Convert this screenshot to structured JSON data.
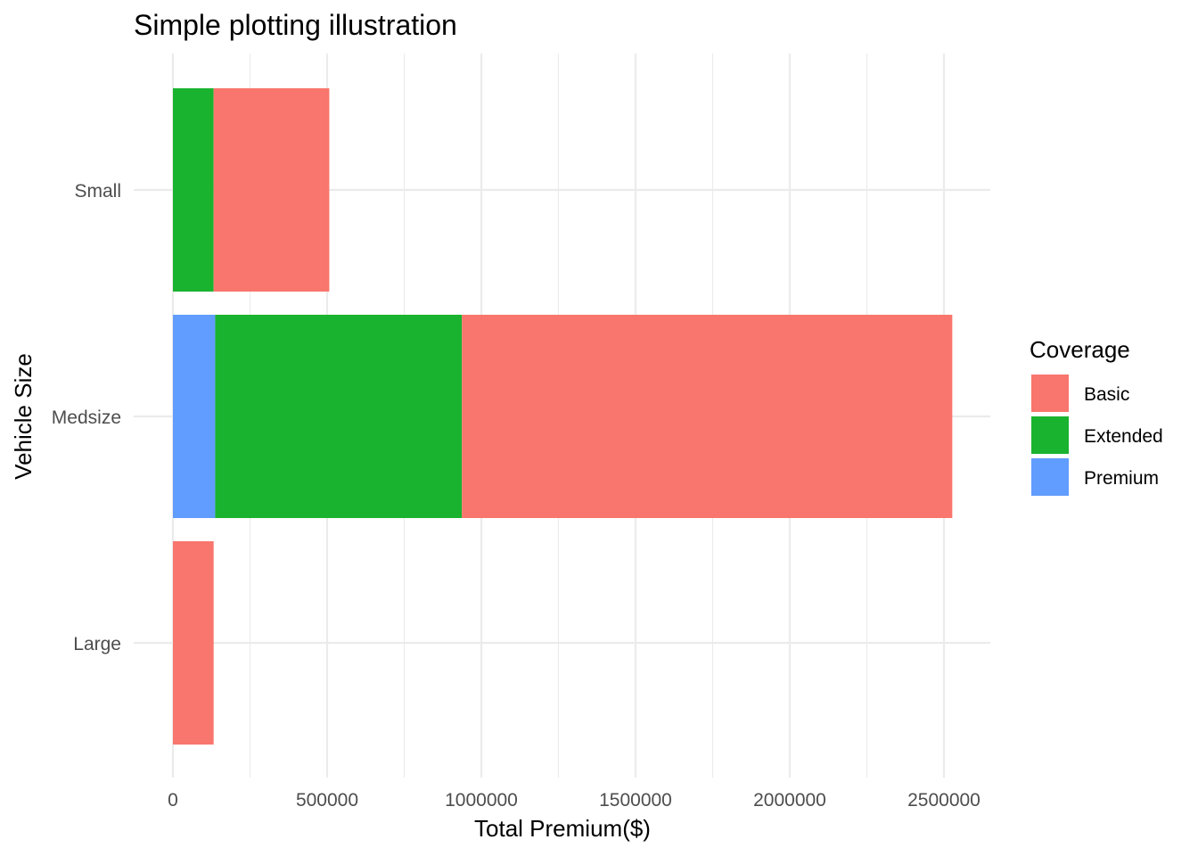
{
  "chart_data": {
    "type": "bar",
    "orientation": "horizontal",
    "stacked": true,
    "title": "Simple plotting illustration",
    "xlabel": "Total Premium($)",
    "ylabel": "Vehicle Size",
    "categories": [
      "Small",
      "Medsize",
      "Large"
    ],
    "series": [
      {
        "name": "Premium",
        "color": "#619CFF",
        "values": [
          0,
          137000,
          0
        ]
      },
      {
        "name": "Extended",
        "color": "#1AB32F",
        "values": [
          132000,
          800000,
          0
        ]
      },
      {
        "name": "Basic",
        "color": "#F8766D",
        "values": [
          375000,
          1590000,
          132000
        ]
      }
    ],
    "xlim": [
      0,
      2650000
    ],
    "xticks": [
      0,
      500000,
      1000000,
      1500000,
      2000000,
      2500000
    ],
    "xtick_labels": [
      "0",
      "500000",
      "1000000",
      "1500000",
      "2000000",
      "2500000"
    ],
    "grid": true,
    "legend": {
      "title": "Coverage",
      "position": "right",
      "entries": [
        {
          "name": "Basic",
          "color": "#F8766D"
        },
        {
          "name": "Extended",
          "color": "#1AB32F"
        },
        {
          "name": "Premium",
          "color": "#619CFF"
        }
      ]
    }
  }
}
